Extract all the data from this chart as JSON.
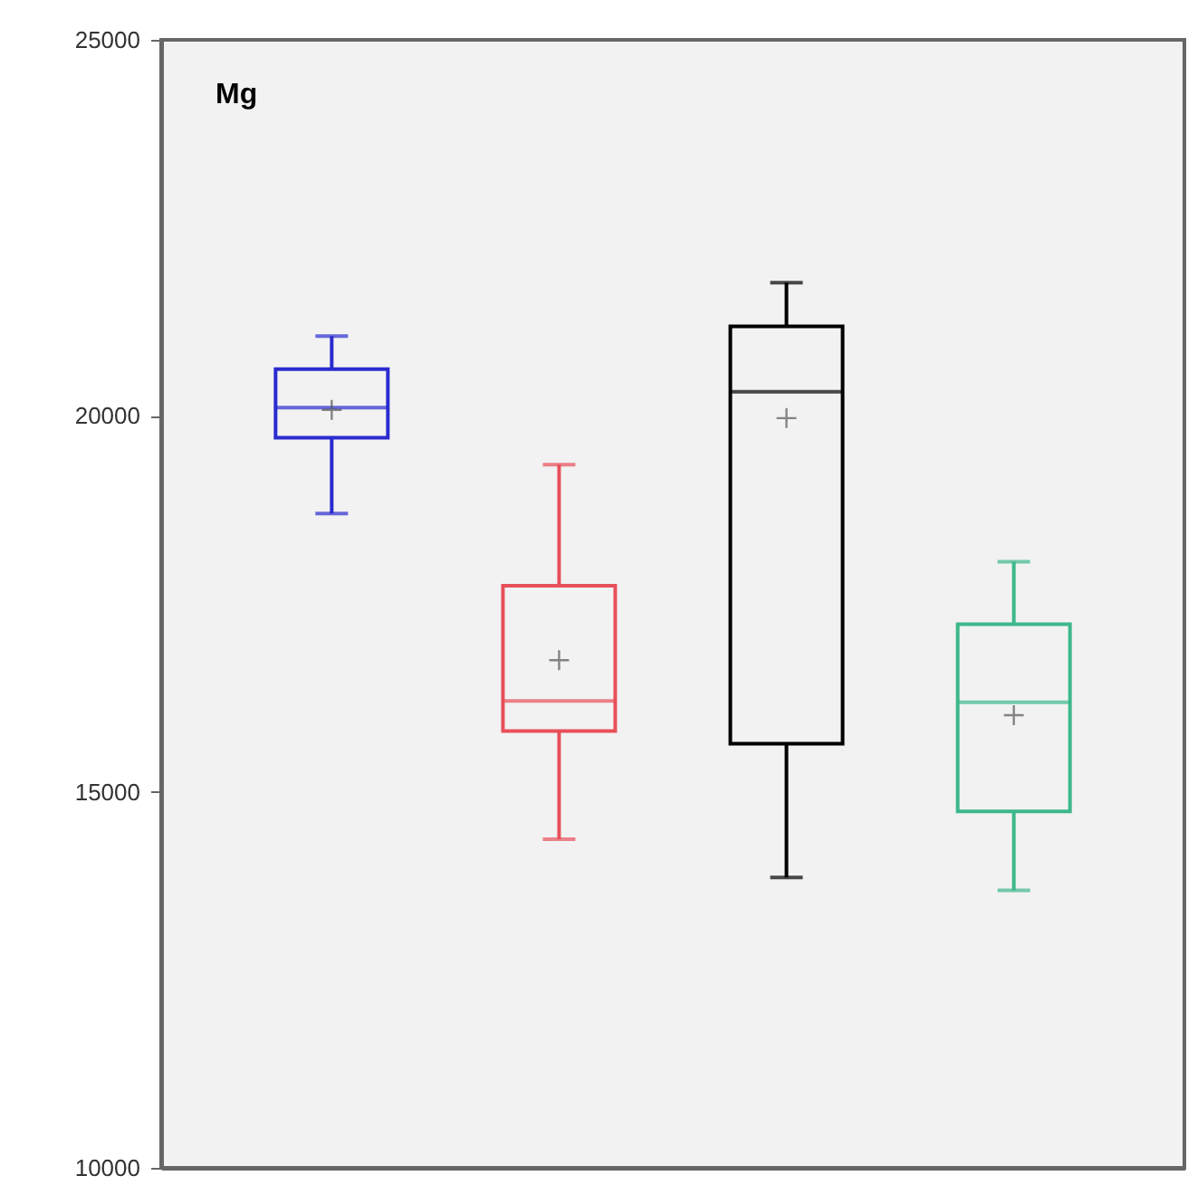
{
  "chart_data": {
    "type": "box",
    "annotations": [
      "Mg"
    ],
    "categories": [
      null,
      null,
      null,
      null
    ],
    "colors": [
      "#2b2bd0",
      "#e8505a",
      "#000000",
      "#3cb88a"
    ],
    "boxes": [
      {
        "low": 18700,
        "q1": 19710,
        "median": 20110,
        "q3": 20620,
        "high": 21060,
        "mean": 20080
      },
      {
        "low": 14370,
        "q1": 15810,
        "median": 16210,
        "q3": 17740,
        "high": 19350,
        "mean": 16750
      },
      {
        "low": 13860,
        "q1": 15640,
        "median": 20320,
        "q3": 21190,
        "high": 21770,
        "mean": 19970
      },
      {
        "low": 13690,
        "q1": 14740,
        "median": 16190,
        "q3": 17230,
        "high": 18060,
        "mean": 16020
      }
    ],
    "ylim": [
      10000,
      25000
    ],
    "yticks": [
      10000,
      15000,
      20000,
      25000
    ],
    "tick_labels": "y",
    "grid": false,
    "legend": false
  }
}
